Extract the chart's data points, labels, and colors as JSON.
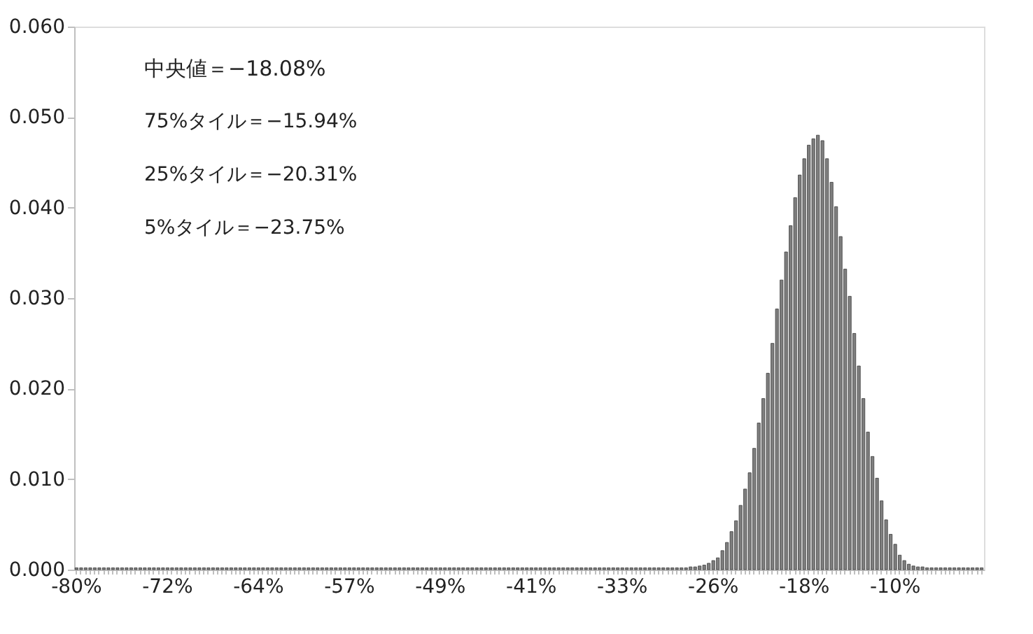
{
  "chart_data": {
    "type": "bar",
    "color": "#7f7f7f",
    "categories": [
      "-80%",
      null,
      null,
      null,
      null,
      null,
      null,
      null,
      null,
      null,
      null,
      null,
      null,
      null,
      null,
      null,
      null,
      null,
      null,
      null,
      "-72%",
      null,
      null,
      null,
      null,
      null,
      null,
      null,
      null,
      null,
      null,
      null,
      null,
      null,
      null,
      null,
      null,
      null,
      null,
      null,
      "-64%",
      null,
      null,
      null,
      null,
      null,
      null,
      null,
      null,
      null,
      null,
      null,
      null,
      null,
      null,
      null,
      null,
      null,
      null,
      null,
      "-57%",
      null,
      null,
      null,
      null,
      null,
      null,
      null,
      null,
      null,
      null,
      null,
      null,
      null,
      null,
      null,
      null,
      null,
      null,
      null,
      "-49%",
      null,
      null,
      null,
      null,
      null,
      null,
      null,
      null,
      null,
      null,
      null,
      null,
      null,
      null,
      null,
      null,
      null,
      null,
      null,
      "-41%",
      null,
      null,
      null,
      null,
      null,
      null,
      null,
      null,
      null,
      null,
      null,
      null,
      null,
      null,
      null,
      null,
      null,
      null,
      null,
      "-33%",
      null,
      null,
      null,
      null,
      null,
      null,
      null,
      null,
      null,
      null,
      null,
      null,
      null,
      null,
      null,
      null,
      null,
      null,
      null,
      "-26%",
      null,
      null,
      null,
      null,
      null,
      null,
      null,
      null,
      null,
      null,
      null,
      null,
      null,
      null,
      null,
      null,
      null,
      null,
      null,
      "-18%",
      null,
      null,
      null,
      null,
      null,
      null,
      null,
      null,
      null,
      null,
      null,
      null,
      null,
      null,
      null,
      null,
      null,
      null,
      null,
      "-10%",
      null,
      null,
      null,
      null,
      null,
      null,
      null,
      null,
      null,
      null,
      null,
      null,
      null,
      null,
      null,
      null,
      null,
      null,
      null
    ],
    "values": [
      0.0002,
      0.0002,
      0.0002,
      0.0002,
      0.0002,
      0.0002,
      0.0002,
      0.0002,
      0.0002,
      0.0002,
      0.0002,
      0.0002,
      0.0002,
      0.0002,
      0.0002,
      0.0002,
      0.0002,
      0.0002,
      0.0002,
      0.0002,
      0.0002,
      0.0002,
      0.0002,
      0.0002,
      0.0002,
      0.0002,
      0.0002,
      0.0002,
      0.0002,
      0.0002,
      0.0002,
      0.0002,
      0.0002,
      0.0002,
      0.0002,
      0.0002,
      0.0002,
      0.0002,
      0.0002,
      0.0002,
      0.0002,
      0.0002,
      0.0002,
      0.0002,
      0.0002,
      0.0002,
      0.0002,
      0.0002,
      0.0002,
      0.0002,
      0.0002,
      0.0002,
      0.0002,
      0.0002,
      0.0002,
      0.0002,
      0.0002,
      0.0002,
      0.0002,
      0.0002,
      0.0002,
      0.0002,
      0.0002,
      0.0002,
      0.0002,
      0.0002,
      0.0002,
      0.0002,
      0.0002,
      0.0002,
      0.0002,
      0.0002,
      0.0002,
      0.0002,
      0.0002,
      0.0002,
      0.0002,
      0.0002,
      0.0002,
      0.0002,
      0.0002,
      0.0002,
      0.0002,
      0.0002,
      0.0002,
      0.0002,
      0.0002,
      0.0002,
      0.0002,
      0.0002,
      0.0002,
      0.0002,
      0.0002,
      0.0002,
      0.0002,
      0.0002,
      0.0002,
      0.0002,
      0.0002,
      0.0002,
      0.0002,
      0.0002,
      0.0002,
      0.0002,
      0.0002,
      0.0002,
      0.0002,
      0.0002,
      0.0002,
      0.0002,
      0.0002,
      0.0002,
      0.0002,
      0.0002,
      0.0002,
      0.0002,
      0.0002,
      0.0002,
      0.0002,
      0.0002,
      0.0002,
      0.0002,
      0.0002,
      0.0002,
      0.0002,
      0.0002,
      0.0002,
      0.0002,
      0.0002,
      0.0002,
      0.0002,
      0.0002,
      0.0002,
      0.0002,
      0.0002,
      0.0003,
      0.0003,
      0.0004,
      0.0005,
      0.0007,
      0.001,
      0.0013,
      0.0021,
      0.003,
      0.0042,
      0.0054,
      0.0071,
      0.0089,
      0.0107,
      0.0134,
      0.0162,
      0.0189,
      0.0217,
      0.025,
      0.0288,
      0.032,
      0.0351,
      0.038,
      0.0411,
      0.0436,
      0.0454,
      0.0469,
      0.0476,
      0.048,
      0.0474,
      0.0454,
      0.0428,
      0.0401,
      0.0368,
      0.0332,
      0.0302,
      0.0261,
      0.0225,
      0.0189,
      0.0152,
      0.0125,
      0.0101,
      0.0076,
      0.0055,
      0.0039,
      0.0028,
      0.0016,
      0.001,
      0.0006,
      0.0004,
      0.0003,
      0.0003,
      0.0002,
      0.0002,
      0.0002,
      0.0002,
      0.0002,
      0.0002,
      0.0002,
      0.0002,
      0.0002,
      0.0002,
      0.0002,
      0.0002,
      0.0002
    ],
    "ylim": [
      0,
      0.06
    ],
    "yticks": [
      {
        "value": 0,
        "label": "0.000"
      },
      {
        "value": 0.01,
        "label": "0.010"
      },
      {
        "value": 0.02,
        "label": "0.020"
      },
      {
        "value": 0.03,
        "label": "0.030"
      },
      {
        "value": 0.04,
        "label": "0.040"
      },
      {
        "value": 0.05,
        "label": "0.050"
      },
      {
        "value": 0.06,
        "label": "0.060"
      }
    ],
    "grid": false,
    "annotations": [
      "中央値＝−18.08%",
      "75%タイル＝−15.94%",
      "25%タイル＝−20.31%",
      "5%タイル＝−23.75%"
    ]
  }
}
